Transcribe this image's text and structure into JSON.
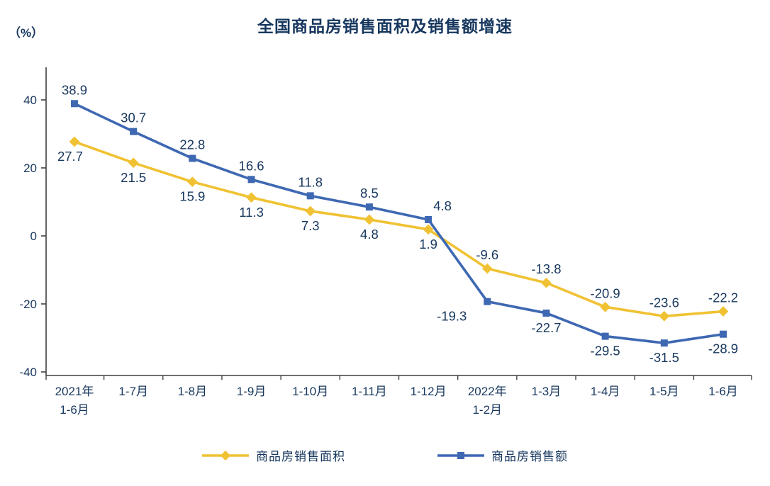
{
  "page": {
    "title": "全国商品房销售面积及销售额增速",
    "y_axis_unit": "（%）"
  },
  "chart_data": {
    "type": "line",
    "title": "全国商品房销售面积及销售额增速",
    "ylabel": "（%）",
    "xlabel": "",
    "ylim": [
      -40,
      40
    ],
    "yticks": [
      40,
      20,
      0,
      -20,
      -40
    ],
    "grid": false,
    "legend_position": "bottom",
    "categories": [
      "2021年\n1-6月",
      "1-7月",
      "1-8月",
      "1-9月",
      "1-10月",
      "1-11月",
      "1-12月",
      "2022年\n1-2月",
      "1-3月",
      "1-4月",
      "1-5月",
      "1-6月"
    ],
    "series": [
      {
        "name": "商品房销售面积",
        "marker": "diamond",
        "color": "#F0C233",
        "values": [
          27.7,
          21.5,
          15.9,
          11.3,
          7.3,
          4.8,
          1.9,
          -9.6,
          -13.8,
          -20.9,
          -23.6,
          -22.2
        ]
      },
      {
        "name": "商品房销售额",
        "marker": "square",
        "color": "#3E68B2",
        "values": [
          38.9,
          30.7,
          22.8,
          16.6,
          11.8,
          8.5,
          4.8,
          -19.3,
          -22.7,
          -29.5,
          -31.5,
          -28.9
        ]
      }
    ],
    "text_color": "#17375E",
    "axis_color": "#404040"
  }
}
